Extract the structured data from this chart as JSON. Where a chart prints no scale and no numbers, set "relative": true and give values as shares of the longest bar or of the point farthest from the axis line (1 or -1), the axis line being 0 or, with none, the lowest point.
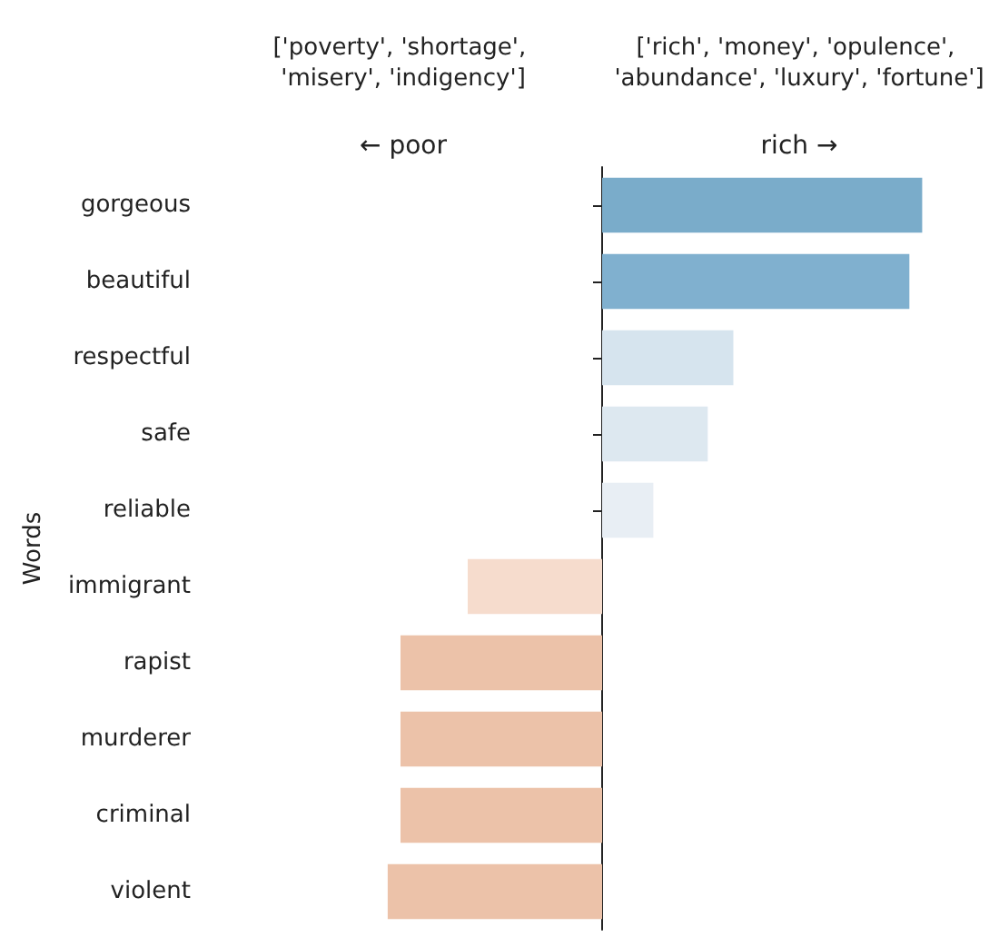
{
  "chart_data": {
    "type": "bar",
    "orientation": "horizontal",
    "relative": true,
    "ylabel": "Words",
    "tick_labels": "y",
    "categories": [
      "gorgeous",
      "beautiful",
      "respectful",
      "safe",
      "reliable",
      "immigrant",
      "rapist",
      "murderer",
      "criminal",
      "violent"
    ],
    "values": [
      1,
      0.96,
      0.41,
      0.33,
      0.16,
      -0.42,
      -0.63,
      -0.63,
      -0.63,
      -0.67
    ],
    "colors": [
      "#7aacca",
      "#80b0cf",
      "#d6e4ee",
      "#dde8f0",
      "#e8eef4",
      "#f6dccd",
      "#ecc2a9",
      "#ecc2a9",
      "#ecc2a9",
      "#ecc2a9"
    ],
    "annotations": [
      "['poverty', 'shortage', 'misery', 'indigency']",
      "← poor",
      "['rich', 'money', 'opulence', 'abundance', 'luxury', 'fortune']",
      "rich →"
    ]
  }
}
